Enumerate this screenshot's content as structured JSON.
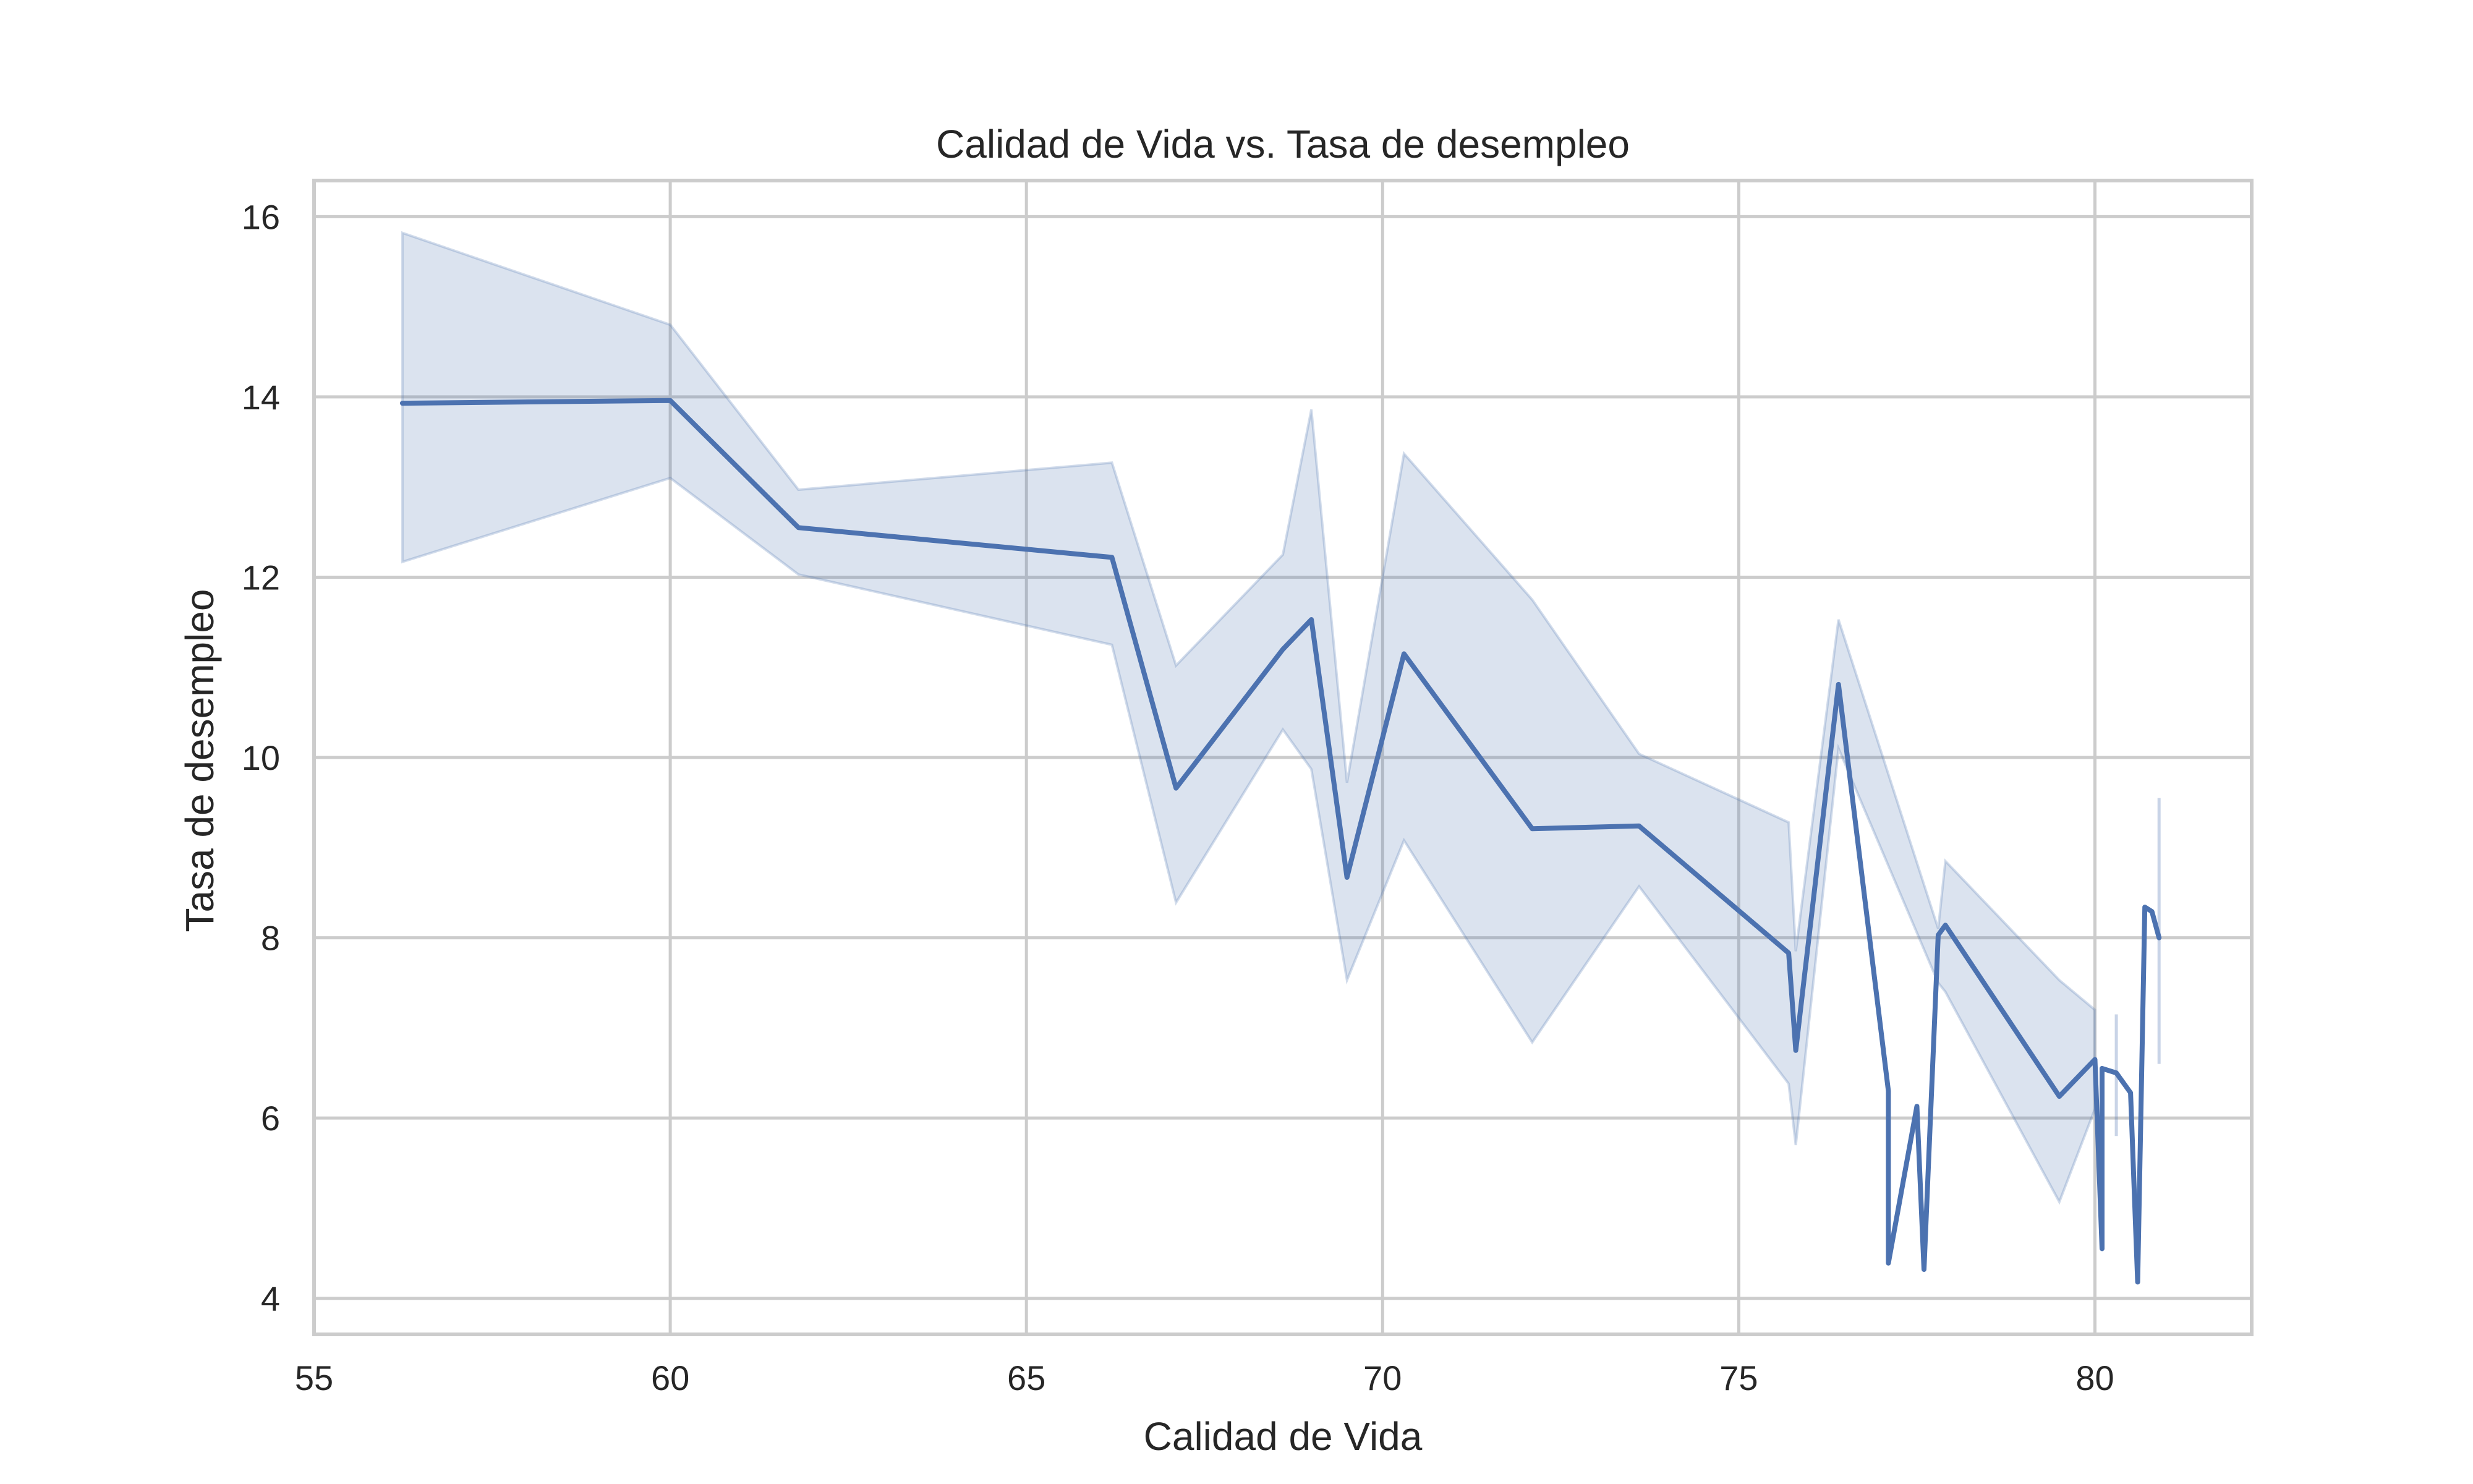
{
  "chart_data": {
    "type": "line",
    "title": "Calidad de Vida vs. Tasa de desempleo",
    "xlabel": "Calidad de Vida",
    "ylabel": "Tasa de desempleo",
    "xlim": [
      55,
      82.2
    ],
    "ylim": [
      3.6,
      16.4
    ],
    "xticks": [
      55,
      60,
      65,
      70,
      75,
      80
    ],
    "yticks": [
      4,
      6,
      8,
      10,
      12,
      14,
      16
    ],
    "grid": true,
    "colors": {
      "line": "#4c72b0",
      "band": "#4c72b0"
    },
    "series": [
      {
        "x": [
          56.24,
          60.0,
          61.8,
          66.2,
          67.1,
          68.6,
          69.0,
          69.5,
          70.3,
          72.1,
          73.6,
          75.7,
          75.8,
          76.4,
          77.1,
          77.1,
          77.5,
          77.6,
          77.8,
          77.9,
          79.5,
          80.0,
          80.1,
          80.1,
          80.3,
          80.5,
          80.6,
          80.7,
          80.8,
          80.9
        ],
        "y": [
          13.93,
          13.96,
          12.55,
          12.22,
          9.66,
          11.2,
          11.53,
          8.67,
          11.15,
          9.21,
          9.24,
          7.83,
          6.75,
          10.81,
          6.3,
          4.39,
          6.13,
          4.32,
          8.03,
          8.14,
          6.24,
          6.65,
          4.55,
          6.55,
          6.5,
          6.28,
          4.18,
          8.34,
          8.29,
          8.0
        ]
      }
    ],
    "confidence_band": {
      "x": [
        56.24,
        60.0,
        61.8,
        66.2,
        67.1,
        68.6,
        69.0,
        69.5,
        70.3,
        72.1,
        73.6,
        75.7,
        75.8,
        76.4,
        77.8,
        77.9,
        79.5,
        80.0
      ],
      "upper": [
        15.82,
        14.8,
        12.97,
        13.27,
        11.02,
        12.25,
        13.86,
        9.72,
        13.37,
        11.75,
        10.04,
        9.28,
        7.85,
        11.53,
        8.1,
        8.85,
        7.53,
        7.2
      ],
      "lower": [
        12.17,
        13.1,
        12.03,
        11.25,
        8.39,
        10.31,
        9.87,
        7.53,
        9.08,
        6.84,
        8.57,
        6.38,
        5.7,
        10.1,
        7.5,
        7.4,
        5.07,
        6.1
      ]
    },
    "error_ticks": [
      {
        "x": 80.3,
        "low": 5.8,
        "high": 7.15
      },
      {
        "x": 80.9,
        "low": 6.6,
        "high": 9.55
      }
    ]
  }
}
